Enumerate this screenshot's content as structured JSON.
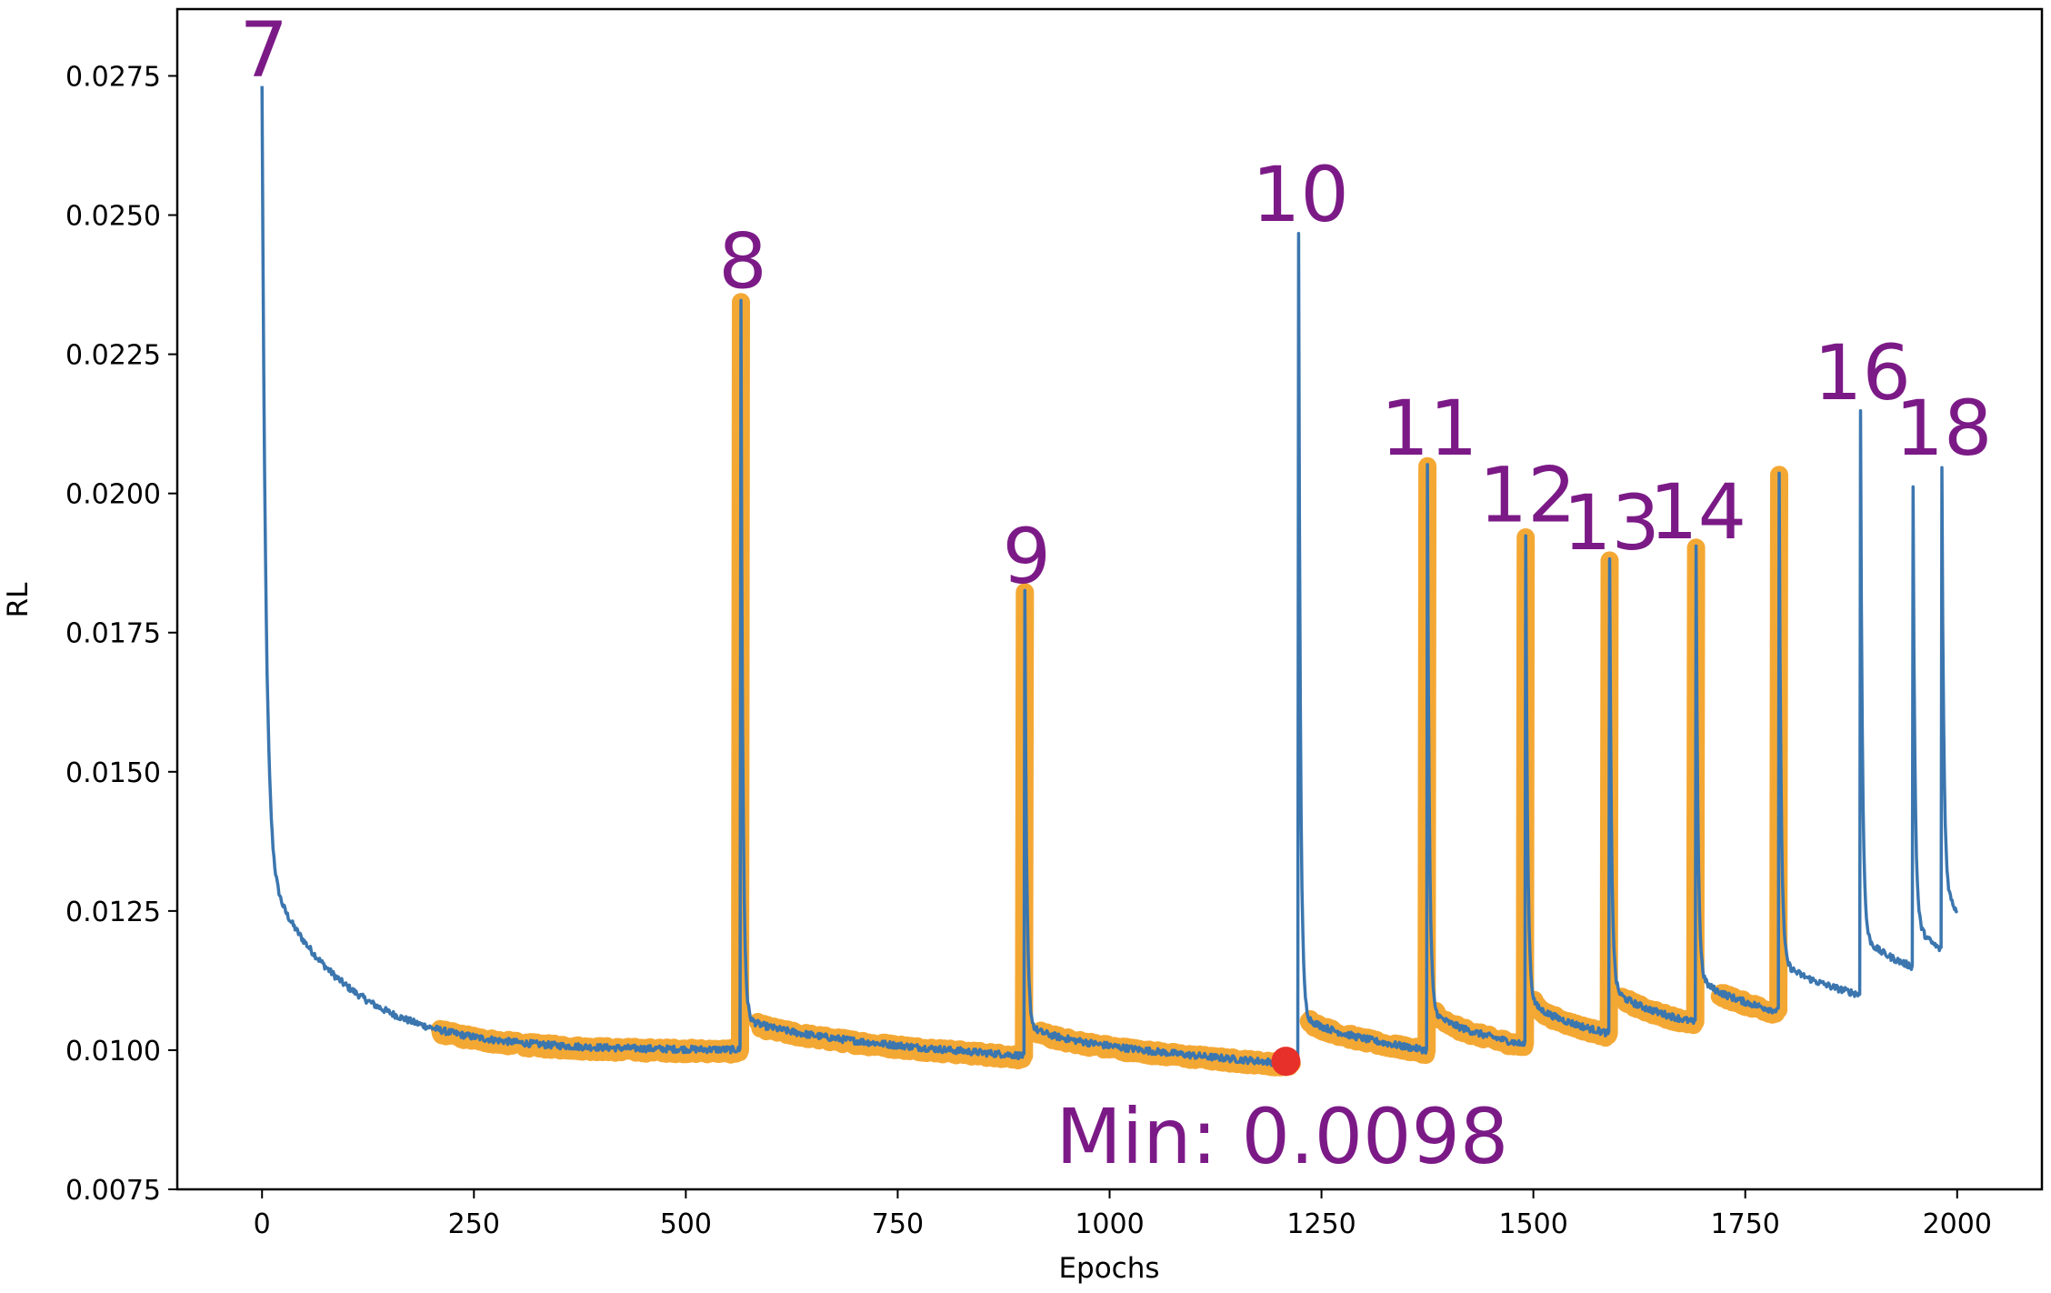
{
  "chart_data": {
    "type": "line",
    "title": "",
    "xlabel": "Epochs",
    "ylabel": "RL",
    "xlim": [
      -100,
      2100
    ],
    "ylim": [
      0.0075,
      0.0287
    ],
    "xticks": [
      0,
      250,
      500,
      750,
      1000,
      1250,
      1500,
      1750,
      2000
    ],
    "xtick_labels": [
      "0",
      "250",
      "500",
      "750",
      "1000",
      "1250",
      "1500",
      "1750",
      "2000"
    ],
    "yticks": [
      0.0075,
      0.01,
      0.0125,
      0.015,
      0.0175,
      0.02,
      0.0225,
      0.025,
      0.0275
    ],
    "ytick_labels": [
      "0.0075",
      "0.0100",
      "0.0125",
      "0.0150",
      "0.0175",
      "0.0200",
      "0.0225",
      "0.0250",
      "0.0275"
    ],
    "grid": false,
    "colors": {
      "line": "#3b76af",
      "highlight": "#f4a834",
      "min_marker": "#e8302a",
      "annotation": "#7b1a86"
    },
    "restarts": [
      {
        "epoch": 0,
        "peak": 0.0273,
        "label": "7"
      },
      {
        "epoch": 565,
        "peak": 0.0235,
        "label": "8"
      },
      {
        "epoch": 900,
        "peak": 0.0182,
        "label": "9"
      },
      {
        "epoch": 1223,
        "peak": 0.0247,
        "label": "10"
      },
      {
        "epoch": 1375,
        "peak": 0.0205,
        "label": "11"
      },
      {
        "epoch": 1491,
        "peak": 0.0193,
        "label": "12"
      },
      {
        "epoch": 1590,
        "peak": 0.0188,
        "label": "13"
      },
      {
        "epoch": 1692,
        "peak": 0.019,
        "label": "14"
      },
      {
        "epoch": 1790,
        "peak": 0.0204,
        "label": ""
      },
      {
        "epoch": 1886,
        "peak": 0.0215,
        "label": "16"
      },
      {
        "epoch": 1948,
        "peak": 0.0201,
        "label": ""
      },
      {
        "epoch": 1982,
        "peak": 0.0205,
        "label": "18"
      }
    ],
    "segment_end_values": [
      0.01,
      0.0099,
      0.00975,
      0.01,
      0.0101,
      0.0103,
      0.0105,
      0.0107,
      0.011,
      0.0115,
      0.0118,
      0.0125
    ],
    "segment_end_epochs": [
      564,
      899,
      1222,
      1374,
      1490,
      1589,
      1691,
      1789,
      1885,
      1947,
      1981,
      2000
    ],
    "highlight_ranges": [
      [
        210,
        565
      ],
      [
        585,
        900
      ],
      [
        915,
        1215
      ],
      [
        1235,
        1375
      ],
      [
        1385,
        1491
      ],
      [
        1500,
        1590
      ],
      [
        1605,
        1692
      ],
      [
        1720,
        1790
      ]
    ],
    "min_point": {
      "epoch": 1208,
      "value": 0.0098
    },
    "min_label": "Min: 0.0098"
  }
}
